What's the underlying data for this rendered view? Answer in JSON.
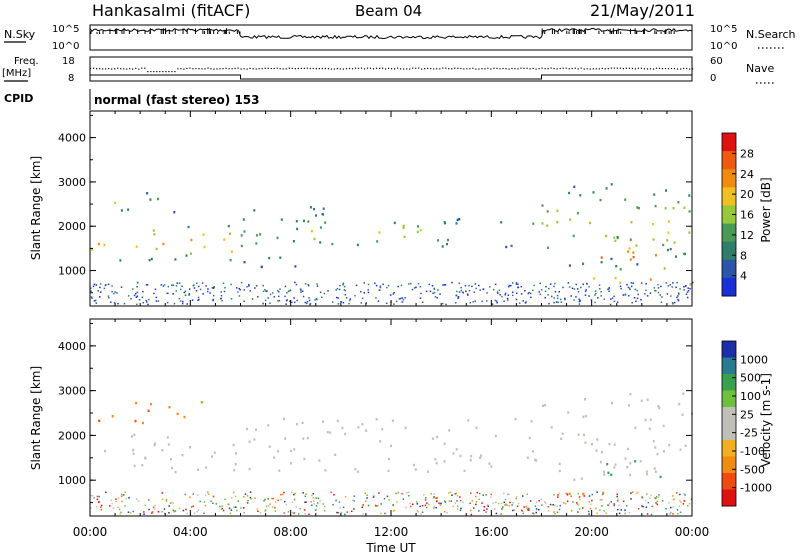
{
  "header": {
    "station": "Hankasalmi (fitACF)",
    "beam": "Beam 04",
    "date": "21/May/2011"
  },
  "aux_panels": {
    "nsky_label": "N.Sky",
    "nsky_ticks": [
      "10^5",
      "10^0"
    ],
    "nsearch_label": "N.Search",
    "nsearch_ticks": [
      "10^5",
      "10^0"
    ],
    "freq_label": "Freq.",
    "freq_unit": "[MHz]",
    "freq_ticks": [
      "18",
      "8"
    ],
    "nave_label": "Nave",
    "nave_ticks": [
      "60",
      "0"
    ],
    "cpid_label": "CPID",
    "cpid_text": "normal (fast stereo) 153"
  },
  "colors": {
    "power_scale": [
      "#1a2fd6",
      "#2a55a8",
      "#2f7d6a",
      "#4a9a55",
      "#96c83c",
      "#f0c020",
      "#f08a10",
      "#ee5a10",
      "#e01010"
    ],
    "velocity_scale": [
      "#e01010",
      "#f04a10",
      "#f08a10",
      "#f0b020",
      "#c0c0b8",
      "#c0c0b8",
      "#70c040",
      "#3aa050",
      "#2a7a90",
      "#1a2fa8"
    ],
    "ground_scatter": "#c0c0b8"
  },
  "chart_data": [
    {
      "type": "heatmap",
      "title": "",
      "xlabel": "",
      "ylabel": "Slant Range [km]",
      "xlim": [
        "00:00",
        "00:00"
      ],
      "ylim": [
        200,
        4600
      ],
      "y_ticks": [
        "4000",
        "3000",
        "2000",
        "1000"
      ],
      "colorbar": {
        "label": "Power [dB]",
        "ticks": [
          "28",
          "24",
          "20",
          "16",
          "12",
          "8",
          "4"
        ],
        "range": [
          0,
          32
        ]
      },
      "regions": [
        {
          "t_start": 0.0,
          "t_end": 6.0,
          "r_low": 1250,
          "r_high": 2100,
          "level": 22
        },
        {
          "t_start": 0.5,
          "t_end": 3.5,
          "r_low": 2300,
          "r_high": 2800,
          "level": 14
        },
        {
          "t_start": 6.0,
          "t_end": 10.0,
          "r_low": 1100,
          "r_high": 2500,
          "level": 12
        },
        {
          "t_start": 8.0,
          "t_end": 18.0,
          "r_low": 1550,
          "r_high": 2200,
          "level": 18
        },
        {
          "t_start": 18.0,
          "t_end": 24.0,
          "r_low": 1100,
          "r_high": 3000,
          "level": 16
        },
        {
          "t_start": 20.0,
          "t_end": 23.5,
          "r_low": 950,
          "r_high": 1800,
          "level": 26
        },
        {
          "t_start": 19.0,
          "t_end": 24.0,
          "r_low": 700,
          "r_high": 900,
          "level": 28
        }
      ]
    },
    {
      "type": "heatmap",
      "title": "",
      "xlabel": "Time UT",
      "ylabel": "Slant Range [km]",
      "xlim": [
        "00:00",
        "00:00"
      ],
      "ylim": [
        200,
        4600
      ],
      "x_ticks": [
        "00:00",
        "04:00",
        "08:00",
        "12:00",
        "16:00",
        "20:00",
        "00:00"
      ],
      "y_ticks": [
        "4000",
        "3000",
        "2000",
        "1000"
      ],
      "colorbar": {
        "label": "Velocity [m s-1]",
        "ticks": [
          "1000",
          "500",
          "100",
          "25",
          "-25",
          "-100",
          "-500",
          "-1000"
        ],
        "range": [
          -1000,
          1000
        ]
      },
      "regions": [
        {
          "t_start": 0.0,
          "t_end": 4.5,
          "r_low": 2300,
          "r_high": 2800,
          "velocity": -400
        },
        {
          "t_start": 0.0,
          "t_end": 6.0,
          "r_low": 1200,
          "r_high": 2100,
          "velocity": 0
        },
        {
          "t_start": 6.0,
          "t_end": 18.0,
          "r_low": 1200,
          "r_high": 2400,
          "velocity": 0
        },
        {
          "t_start": 18.0,
          "t_end": 24.0,
          "r_low": 1000,
          "r_high": 3000,
          "velocity": 0
        },
        {
          "t_start": 20.5,
          "t_end": 23.0,
          "r_low": 1100,
          "r_high": 1500,
          "velocity": 250
        },
        {
          "t_start": 19.0,
          "t_end": 21.0,
          "r_low": 700,
          "r_high": 1000,
          "velocity": -300
        }
      ]
    }
  ]
}
